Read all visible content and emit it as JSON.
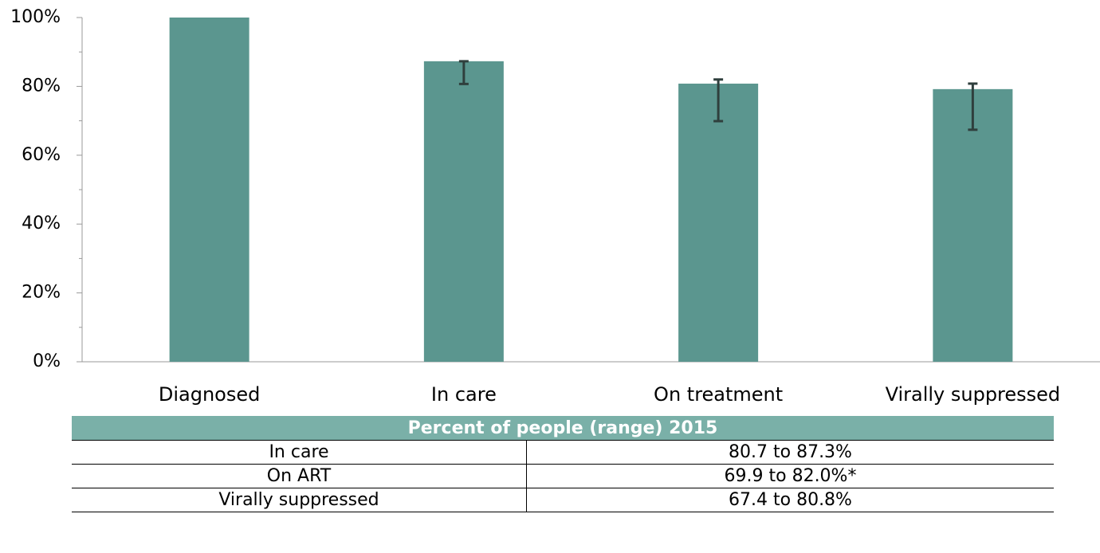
{
  "chart_data": {
    "type": "bar",
    "categories": [
      "Diagnosed",
      "In care",
      "On treatment",
      "Virally suppressed"
    ],
    "values": [
      100,
      87.3,
      80.8,
      79.2
    ],
    "error_low": [
      null,
      80.7,
      69.9,
      67.4
    ],
    "error_high": [
      null,
      87.3,
      82.0,
      80.8
    ],
    "color": "#5b968f",
    "error_color": "#2f3f3d",
    "ylim": [
      0,
      100
    ],
    "yticks": [
      {
        "value": 0,
        "label": "0%"
      },
      {
        "value": 20,
        "label": "20%"
      },
      {
        "value": 40,
        "label": "40%"
      },
      {
        "value": 60,
        "label": "60%"
      },
      {
        "value": 80,
        "label": "80%"
      },
      {
        "value": 100,
        "label": "100%"
      }
    ],
    "minor_yticks": [
      10,
      30,
      50,
      70,
      90
    ],
    "grid": false
  },
  "table": {
    "header": "Percent of people (range) 2015",
    "rows": [
      [
        "In care",
        "80.7 to 87.3%"
      ],
      [
        "On ART",
        "69.9 to 82.0%*"
      ],
      [
        "Virally suppressed",
        "67.4 to 80.8%"
      ]
    ]
  }
}
